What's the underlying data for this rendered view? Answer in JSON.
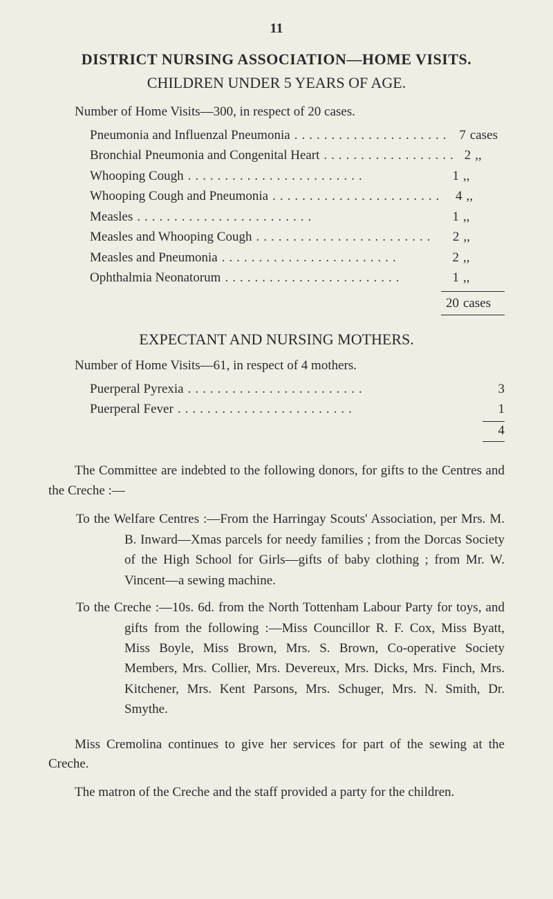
{
  "page_number": "11",
  "heading": "DISTRICT NURSING ASSOCIATION—HOME VISITS.",
  "subheading": "CHILDREN UNDER 5 YEARS OF AGE.",
  "intro1": "Number of Home Visits—300, in respect of 20 cases.",
  "table1": {
    "rows": [
      {
        "label": "Pneumonia and Influenzal Pneumonia",
        "value": "7",
        "unit": "cases"
      },
      {
        "label": "Bronchial Pneumonia and Congenital Heart",
        "value": "2",
        "unit": ",,"
      },
      {
        "label": "Whooping Cough",
        "value": "1",
        "unit": ",,"
      },
      {
        "label": "Whooping Cough and Pneumonia",
        "value": "4",
        "unit": ",,"
      },
      {
        "label": "Measles",
        "value": "1",
        "unit": ",,"
      },
      {
        "label": "Measles and Whooping Cough",
        "value": "2",
        "unit": ",,"
      },
      {
        "label": "Measles and Pneumonia",
        "value": "2",
        "unit": ",,"
      },
      {
        "label": "Ophthalmia Neonatorum",
        "value": "1",
        "unit": ",,"
      }
    ],
    "total": {
      "value": "20",
      "unit": "cases"
    }
  },
  "heading2": "EXPECTANT AND NURSING MOTHERS.",
  "intro2": "Number of Home Visits—61, in respect of 4 mothers.",
  "table2": {
    "rows": [
      {
        "label": "Puerperal Pyrexia",
        "value": "3"
      },
      {
        "label": "Puerperal Fever",
        "value": "1"
      }
    ],
    "total": {
      "value": "4"
    }
  },
  "body1": "The Committee are indebted to the following donors, for gifts to the Centres and the Creche :—",
  "hang1": "To the Welfare Centres :—From the Harringay Scouts' Association, per Mrs. M. B. Inward—Xmas parcels for needy families ; from the Dorcas Society of the High School for Girls—gifts of baby clothing ; from Mr. W. Vincent—a sewing machine.",
  "hang2": "To the Creche :—10s. 6d. from the North Tottenham Labour Party for toys, and gifts from the following :—Miss Councillor R. F. Cox, Miss Byatt, Miss Boyle, Miss Brown, Mrs. S. Brown, Co-operative Society Members, Mrs. Collier, Mrs. Devereux, Mrs. Dicks, Mrs. Finch, Mrs. Kitchener, Mrs. Kent Parsons, Mrs. Schuger, Mrs. N. Smith, Dr. Smythe.",
  "body2": "Miss Cremolina continues to give her services for part of the sewing at the Creche.",
  "body3": "The matron of the Creche and the staff provided a party for the children.",
  "dots": "........................"
}
